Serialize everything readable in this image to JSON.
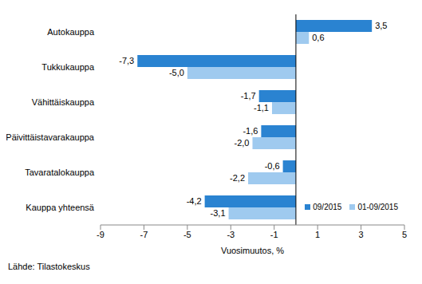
{
  "chart_data": {
    "type": "bar",
    "orientation": "horizontal",
    "categories": [
      "Autokauppa",
      "Tukkukauppa",
      "Vähittäiskauppa",
      "Päivittäistavarakauppa",
      "Tavaratalokauppa",
      "Kauppa yhteensä"
    ],
    "series": [
      {
        "name": "09/2015",
        "color": "#2a83d1",
        "values": [
          3.5,
          -7.3,
          -1.7,
          -1.6,
          -0.6,
          -4.2
        ],
        "value_labels": [
          "3,5",
          "-7,3",
          "-1,7",
          "-1,6",
          "-0,6",
          "-4,2"
        ]
      },
      {
        "name": "01-09/2015",
        "color": "#9fcaef",
        "values": [
          0.6,
          -5.0,
          -1.1,
          -2.0,
          -2.2,
          -3.1
        ],
        "value_labels": [
          "0,6",
          "-5,0",
          "-1,1",
          "-2,0",
          "-2,2",
          "-3,1"
        ]
      }
    ],
    "xlim": [
      -9,
      5
    ],
    "xticks": [
      -9,
      -7,
      -5,
      -3,
      -1,
      1,
      3,
      5
    ],
    "x_label": "Vuosimuutos, %",
    "source": "Lähde: Tilastokeskus",
    "data_labels": true,
    "grid": false,
    "legend": "lower right"
  }
}
